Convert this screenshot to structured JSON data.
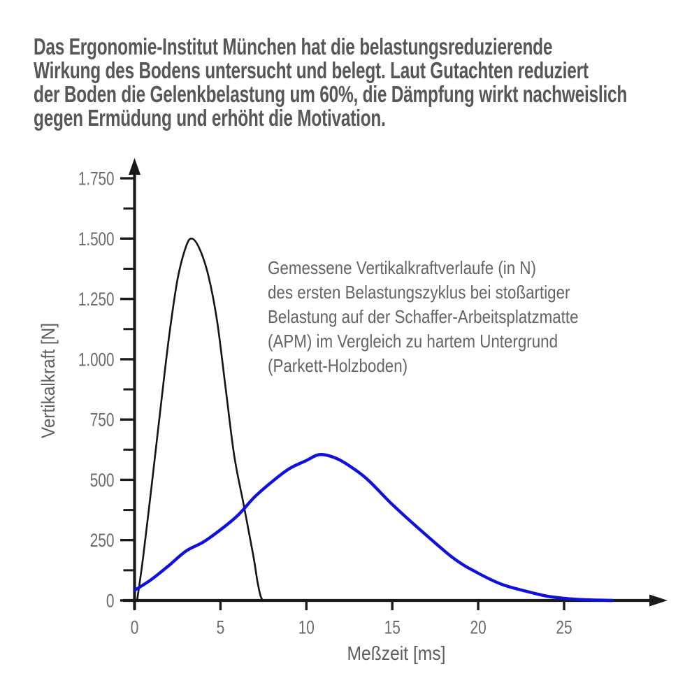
{
  "intro": {
    "lines": [
      "Das Ergonomie-Institut München hat die belastungsreduzierende",
      "Wirkung des Bodens untersucht und belegt. Laut Gutachten reduziert",
      "der Boden die Gelenkbelastung um 60%, die Dämpfung wirkt nachweislich",
      "gegen Ermüdung und erhöht die Motivation."
    ]
  },
  "chart_data": {
    "type": "line",
    "annotation_lines": [
      "Gemessene Vertikalkraftverlaufe (in N)",
      "des ersten Belastungszyklus bei stoßartiger",
      "Belastung auf der Schaffer-Arbeitsplatzmatte",
      "(APM) im Vergleich zu hartem Untergrund",
      "(Parkett-Holzboden)"
    ],
    "xlabel": "Meßzeit [ms]",
    "ylabel": "Vertikalkraft [N]",
    "xlim": [
      0,
      28.8
    ],
    "ylim": [
      0,
      1810
    ],
    "grid": false,
    "legend": "none (curves identified in annotation text)",
    "x_ticks": {
      "values": [
        0,
        5,
        10,
        15,
        20,
        25
      ],
      "labels": [
        "0",
        "5",
        "10",
        "15",
        "20",
        "25"
      ]
    },
    "y_ticks": {
      "values": [
        0,
        250,
        500,
        750,
        1000,
        1250,
        1500,
        1750
      ],
      "labels": [
        "0",
        "250",
        "500",
        "750",
        "1.000",
        "1.250",
        "1.500",
        "1.750"
      ]
    },
    "y_minor_ticks": [
      125,
      375,
      625,
      875,
      1125,
      1375,
      1625
    ],
    "series": [
      {
        "name": "harter Untergrund (Parkett-Holzboden)",
        "color": "#141414",
        "stroke_width": 2.6,
        "peak": {
          "x_ms": 3.35,
          "y_N": 1500
        },
        "points": [
          [
            0.15,
            0
          ],
          [
            0.5,
            180
          ],
          [
            1.0,
            480
          ],
          [
            1.5,
            790
          ],
          [
            2.0,
            1090
          ],
          [
            2.5,
            1330
          ],
          [
            3.0,
            1468
          ],
          [
            3.35,
            1500
          ],
          [
            3.8,
            1455
          ],
          [
            4.3,
            1345
          ],
          [
            4.8,
            1160
          ],
          [
            5.3,
            880
          ],
          [
            5.8,
            600
          ],
          [
            6.35,
            397
          ],
          [
            6.9,
            190
          ],
          [
            7.15,
            80
          ],
          [
            7.32,
            22
          ],
          [
            7.45,
            0
          ]
        ]
      },
      {
        "name": "Schaffer-Arbeitsplatzmatte (APM)",
        "color": "#0f10dd",
        "stroke_width": 4.4,
        "peak": {
          "x_ms": 10.7,
          "y_N": 604
        },
        "points": [
          [
            0,
            42
          ],
          [
            1,
            88
          ],
          [
            2,
            145
          ],
          [
            3,
            205
          ],
          [
            4,
            242
          ],
          [
            5,
            293
          ],
          [
            6,
            352
          ],
          [
            7,
            430
          ],
          [
            8,
            492
          ],
          [
            9,
            546
          ],
          [
            10,
            580
          ],
          [
            10.7,
            604
          ],
          [
            11.4,
            598
          ],
          [
            12.2,
            572
          ],
          [
            13.5,
            505
          ],
          [
            15,
            398
          ],
          [
            16.7,
            288
          ],
          [
            18.6,
            173
          ],
          [
            20,
            113
          ],
          [
            21.4,
            66
          ],
          [
            22.8,
            38
          ],
          [
            24,
            18
          ],
          [
            25,
            9
          ],
          [
            26.2,
            3
          ],
          [
            27.8,
            0
          ]
        ]
      }
    ],
    "colors": {
      "axis": "#1a1a1a",
      "tick_label": "#6a6b6d",
      "axis_title": "#5d5e60"
    }
  }
}
